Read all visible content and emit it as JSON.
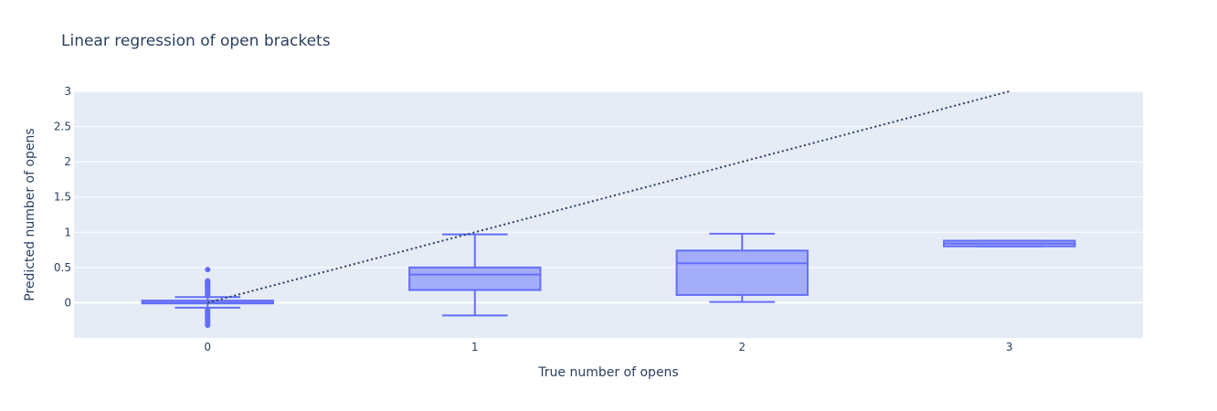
{
  "chart_data": {
    "type": "box",
    "title": "Linear regression of open brackets",
    "xlabel": "True number of opens",
    "ylabel": "Predicted number of opens",
    "xlim": [
      -0.5,
      3.5
    ],
    "ylim": [
      -0.5,
      3.0
    ],
    "x_ticks": [
      "0",
      "1",
      "2",
      "3"
    ],
    "y_ticks": [
      {
        "value": 0,
        "label": "0"
      },
      {
        "value": 0.5,
        "label": "0.5"
      },
      {
        "value": 1,
        "label": "1"
      },
      {
        "value": 1.5,
        "label": "1.5"
      },
      {
        "value": 2,
        "label": "2"
      },
      {
        "value": 2.5,
        "label": "2.5"
      },
      {
        "value": 3,
        "label": "3"
      }
    ],
    "grid": true,
    "box_color": "#636efa",
    "reference_line_color": "#2a3f5f",
    "reference_line": {
      "x": [
        0,
        3
      ],
      "y": [
        0,
        3
      ],
      "style": "dotted"
    },
    "boxes": [
      {
        "x": 0,
        "whisker_low": -0.07,
        "q1": -0.01,
        "median": 0.0,
        "q3": 0.03,
        "whisker_high": 0.08,
        "outliers": [
          0.47,
          0.31,
          0.3,
          0.29,
          0.28,
          0.27,
          0.26,
          0.25,
          0.24,
          0.23,
          0.22,
          0.2,
          0.18,
          0.16,
          0.14,
          0.12,
          0.1,
          -0.1,
          -0.12,
          -0.14,
          -0.16,
          -0.18,
          -0.2,
          -0.22,
          -0.24,
          -0.26,
          -0.28,
          -0.3,
          -0.32
        ]
      },
      {
        "x": 1,
        "whisker_low": -0.18,
        "q1": 0.18,
        "median": 0.4,
        "q3": 0.5,
        "whisker_high": 0.97,
        "outliers": []
      },
      {
        "x": 2,
        "whisker_low": 0.01,
        "q1": 0.11,
        "median": 0.56,
        "q3": 0.74,
        "whisker_high": 0.98,
        "outliers": []
      },
      {
        "x": 3,
        "whisker_low": 0.8,
        "q1": 0.8,
        "median": 0.84,
        "q3": 0.88,
        "whisker_high": 0.88,
        "outliers": []
      }
    ]
  }
}
